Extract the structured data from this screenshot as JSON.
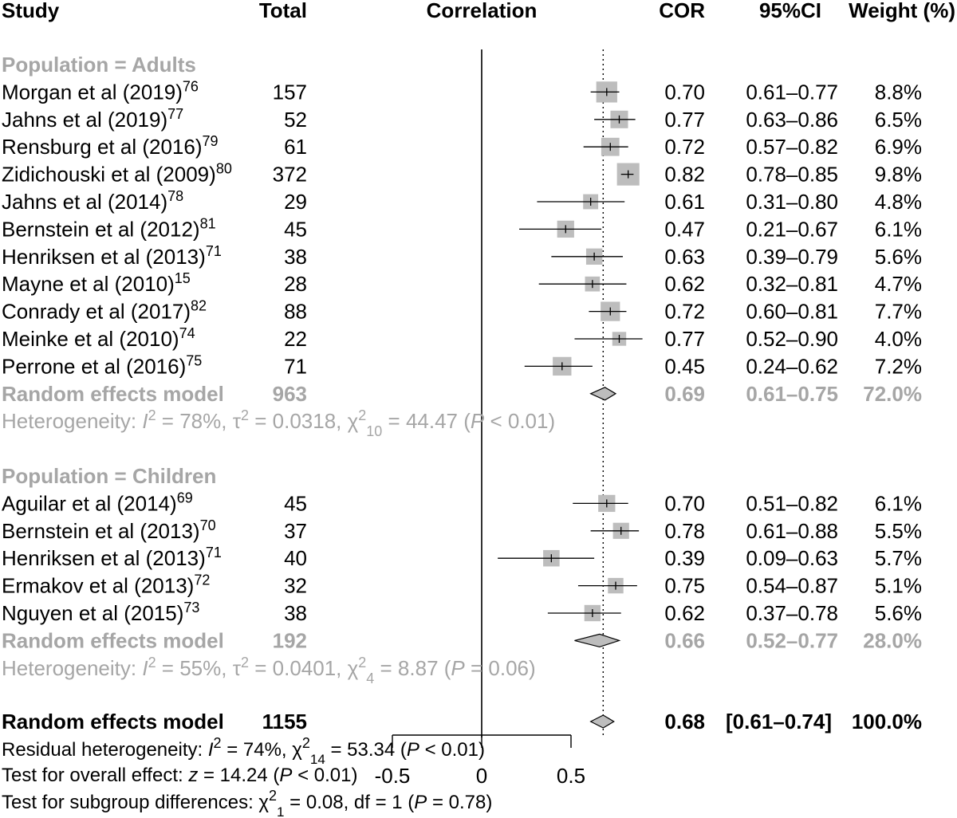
{
  "header": {
    "study": "Study",
    "total": "Total",
    "correlation": "Correlation",
    "cor": "COR",
    "ci": "95%CI",
    "weight": "Weight (%)"
  },
  "colors": {
    "text": "#000000",
    "gray_text": "#a6a6a6",
    "box_fill": "#bdbdbd",
    "diamond_fill": "#bdbdbd",
    "line": "#000000"
  },
  "chart_data": {
    "type": "forest",
    "axis": {
      "range": [
        -0.5,
        0.5
      ],
      "ticks": [
        -0.5,
        0,
        0.5
      ],
      "tick_labels": [
        "-0.5",
        "0",
        "0.5"
      ]
    },
    "reference_line": 0,
    "overall_line": 0.68,
    "groups": [
      {
        "label": "Population = Adults",
        "studies": [
          {
            "name": "Morgan et al (2019)",
            "ref": "76",
            "total": "157",
            "cor": 0.7,
            "lower": 0.61,
            "upper": 0.77,
            "cor_text": "0.70",
            "ci_text": "0.61–0.77",
            "weight": 8.8,
            "weight_text": "8.8%"
          },
          {
            "name": "Jahns et al (2019)",
            "ref": "77",
            "total": "52",
            "cor": 0.77,
            "lower": 0.63,
            "upper": 0.86,
            "cor_text": "0.77",
            "ci_text": "0.63–0.86",
            "weight": 6.5,
            "weight_text": "6.5%"
          },
          {
            "name": "Rensburg et al (2016)",
            "ref": "79",
            "total": "61",
            "cor": 0.72,
            "lower": 0.57,
            "upper": 0.82,
            "cor_text": "0.72",
            "ci_text": "0.57–0.82",
            "weight": 6.9,
            "weight_text": "6.9%"
          },
          {
            "name": "Zidichouski et al (2009)",
            "ref": "80",
            "total": "372",
            "cor": 0.82,
            "lower": 0.78,
            "upper": 0.85,
            "cor_text": "0.82",
            "ci_text": "0.78–0.85",
            "weight": 9.8,
            "weight_text": "9.8%"
          },
          {
            "name": "Jahns et al (2014)",
            "ref": "78",
            "total": "29",
            "cor": 0.61,
            "lower": 0.31,
            "upper": 0.8,
            "cor_text": "0.61",
            "ci_text": "0.31–0.80",
            "weight": 4.8,
            "weight_text": "4.8%"
          },
          {
            "name": "Bernstein et al (2012)",
            "ref": "81",
            "total": "45",
            "cor": 0.47,
            "lower": 0.21,
            "upper": 0.67,
            "cor_text": "0.47",
            "ci_text": "0.21–0.67",
            "weight": 6.1,
            "weight_text": "6.1%"
          },
          {
            "name": "Henriksen et al (2013)",
            "ref": "71",
            "total": "38",
            "cor": 0.63,
            "lower": 0.39,
            "upper": 0.79,
            "cor_text": "0.63",
            "ci_text": "0.39–0.79",
            "weight": 5.6,
            "weight_text": "5.6%"
          },
          {
            "name": "Mayne et al (2010)",
            "ref": "15",
            "total": "28",
            "cor": 0.62,
            "lower": 0.32,
            "upper": 0.81,
            "cor_text": "0.62",
            "ci_text": "0.32–0.81",
            "weight": 4.7,
            "weight_text": "4.7%"
          },
          {
            "name": "Conrady et al (2017)",
            "ref": "82",
            "total": "88",
            "cor": 0.72,
            "lower": 0.6,
            "upper": 0.81,
            "cor_text": "0.72",
            "ci_text": "0.60–0.81",
            "weight": 7.7,
            "weight_text": "7.7%"
          },
          {
            "name": "Meinke et al (2010)",
            "ref": "74",
            "total": "22",
            "cor": 0.77,
            "lower": 0.52,
            "upper": 0.9,
            "cor_text": "0.77",
            "ci_text": "0.52–0.90",
            "weight": 4.0,
            "weight_text": "4.0%"
          },
          {
            "name": "Perrone et al (2016)",
            "ref": "75",
            "total": "71",
            "cor": 0.45,
            "lower": 0.24,
            "upper": 0.62,
            "cor_text": "0.45",
            "ci_text": "0.24–0.62",
            "weight": 7.2,
            "weight_text": "7.2%"
          }
        ],
        "summary": {
          "label": "Random effects model",
          "total": "963",
          "cor": 0.69,
          "lower": 0.61,
          "upper": 0.75,
          "cor_text": "0.69",
          "ci_text": "0.61–0.75",
          "weight_text": "72.0%"
        },
        "heterogeneity": {
          "prefix": "Heterogeneity: ",
          "i2": "I",
          "i2_value": " = 78%, ",
          "tau": "τ",
          "tau_value": " = 0.0318, ",
          "chi": "χ",
          "chi_sub": "10",
          "chi_value": " = 44.47 (",
          "p": "P",
          "p_value": " < 0.01)"
        }
      },
      {
        "label": "Population = Children",
        "studies": [
          {
            "name": "Aguilar et al (2014)",
            "ref": "69",
            "total": "45",
            "cor": 0.7,
            "lower": 0.51,
            "upper": 0.82,
            "cor_text": "0.70",
            "ci_text": "0.51–0.82",
            "weight": 6.1,
            "weight_text": "6.1%"
          },
          {
            "name": "Bernstein et al (2013)",
            "ref": "70",
            "total": "37",
            "cor": 0.78,
            "lower": 0.61,
            "upper": 0.88,
            "cor_text": "0.78",
            "ci_text": "0.61–0.88",
            "weight": 5.5,
            "weight_text": "5.5%"
          },
          {
            "name": "Henriksen et al (2013)",
            "ref": "71",
            "total": "40",
            "cor": 0.39,
            "lower": 0.09,
            "upper": 0.63,
            "cor_text": "0.39",
            "ci_text": "0.09–0.63",
            "weight": 5.7,
            "weight_text": "5.7%"
          },
          {
            "name": "Ermakov et al (2013)",
            "ref": "72",
            "total": "32",
            "cor": 0.75,
            "lower": 0.54,
            "upper": 0.87,
            "cor_text": "0.75",
            "ci_text": "0.54–0.87",
            "weight": 5.1,
            "weight_text": "5.1%"
          },
          {
            "name": "Nguyen et al (2015)",
            "ref": "73",
            "total": "38",
            "cor": 0.62,
            "lower": 0.37,
            "upper": 0.78,
            "cor_text": "0.62",
            "ci_text": "0.37–0.78",
            "weight": 5.6,
            "weight_text": "5.6%"
          }
        ],
        "summary": {
          "label": "Random effects model",
          "total": "192",
          "cor": 0.66,
          "lower": 0.52,
          "upper": 0.77,
          "cor_text": "0.66",
          "ci_text": "0.52–0.77",
          "weight_text": "28.0%"
        },
        "heterogeneity": {
          "prefix": "Heterogeneity: ",
          "i2": "I",
          "i2_value": " = 55%, ",
          "tau": "τ",
          "tau_value": " = 0.0401, ",
          "chi": "χ",
          "chi_sub": "4",
          "chi_value": " = 8.87 (",
          "p": "P",
          "p_value": " = 0.06)"
        }
      }
    ],
    "overall": {
      "label": "Random effects model",
      "total": "1155",
      "cor": 0.68,
      "lower": 0.61,
      "upper": 0.74,
      "cor_text": "0.68",
      "ci_text": "[0.61–0.74]",
      "weight_text": "100.0%"
    },
    "footer": {
      "residual": {
        "prefix": "Residual heterogeneity: ",
        "i2": "I",
        "i2_value": " = 74%, ",
        "chi": "χ",
        "chi_sub": "14",
        "chi_value": " = 53.34 (",
        "p": "P",
        "p_value": " < 0.01)"
      },
      "overall_effect": {
        "prefix": "Test for overall effect: ",
        "z": "z",
        "z_value": " = 14.24 (",
        "p": "P",
        "p_value": " < 0.01)"
      },
      "subgroup": {
        "prefix": "Test for subgroup differences: ",
        "chi": "χ",
        "chi_sub": "1",
        "chi_value": " = 0.08, df = 1 (",
        "p": "P",
        "p_value": " = 0.78)"
      }
    }
  }
}
